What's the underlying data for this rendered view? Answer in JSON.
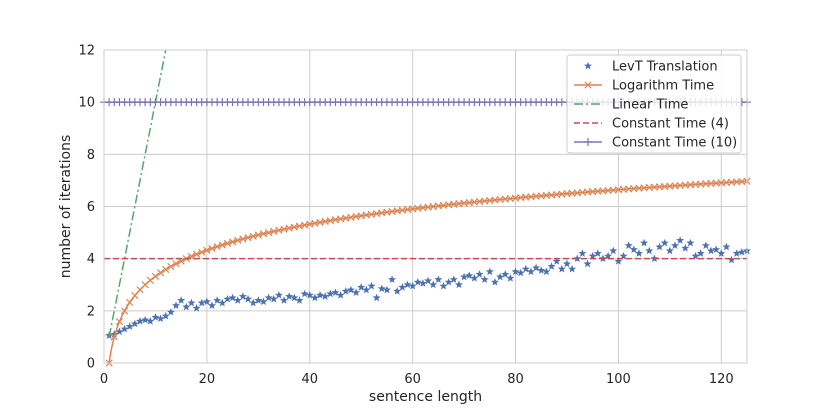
{
  "chart_data": {
    "type": "line",
    "title": "",
    "xlabel": "sentence length",
    "ylabel": "number of iterations",
    "xlim": [
      0,
      125
    ],
    "ylim": [
      0,
      12
    ],
    "xticks": [
      0,
      20,
      40,
      60,
      80,
      100,
      120
    ],
    "yticks": [
      0,
      2,
      4,
      6,
      8,
      10,
      12
    ],
    "grid": true,
    "legend_position": "top-right",
    "series": [
      {
        "name": "LevT Translation",
        "color": "#4c72b0",
        "marker": "star",
        "linestyle": "none",
        "x": [
          1,
          2,
          3,
          4,
          5,
          6,
          7,
          8,
          9,
          10,
          11,
          12,
          13,
          14,
          15,
          16,
          17,
          18,
          19,
          20,
          21,
          22,
          23,
          24,
          25,
          26,
          27,
          28,
          29,
          30,
          31,
          32,
          33,
          34,
          35,
          36,
          37,
          38,
          39,
          40,
          41,
          42,
          43,
          44,
          45,
          46,
          47,
          48,
          49,
          50,
          51,
          52,
          53,
          54,
          55,
          56,
          57,
          58,
          59,
          60,
          61,
          62,
          63,
          64,
          65,
          66,
          67,
          68,
          69,
          70,
          71,
          72,
          73,
          74,
          75,
          76,
          77,
          78,
          79,
          80,
          81,
          82,
          83,
          84,
          85,
          86,
          87,
          88,
          89,
          90,
          91,
          92,
          93,
          94,
          95,
          96,
          97,
          98,
          99,
          100,
          101,
          102,
          103,
          104,
          105,
          106,
          107,
          108,
          109,
          110,
          111,
          112,
          113,
          114,
          115,
          116,
          117,
          118,
          119,
          120,
          121,
          122,
          123,
          124,
          125
        ],
        "y": [
          1.05,
          1.1,
          1.2,
          1.3,
          1.4,
          1.5,
          1.6,
          1.65,
          1.6,
          1.75,
          1.7,
          1.8,
          1.95,
          2.2,
          2.4,
          2.15,
          2.3,
          2.1,
          2.3,
          2.35,
          2.2,
          2.4,
          2.3,
          2.45,
          2.5,
          2.4,
          2.55,
          2.45,
          2.3,
          2.4,
          2.35,
          2.5,
          2.45,
          2.6,
          2.4,
          2.55,
          2.5,
          2.4,
          2.65,
          2.6,
          2.5,
          2.6,
          2.55,
          2.65,
          2.7,
          2.6,
          2.75,
          2.8,
          2.7,
          2.9,
          2.8,
          2.95,
          2.5,
          2.85,
          2.8,
          3.2,
          2.75,
          2.9,
          3.0,
          2.95,
          3.1,
          3.05,
          3.15,
          3.0,
          3.2,
          2.95,
          3.1,
          3.2,
          3.0,
          3.3,
          3.35,
          3.25,
          3.4,
          3.2,
          3.5,
          3.1,
          3.3,
          3.4,
          3.25,
          3.5,
          3.45,
          3.6,
          3.5,
          3.65,
          3.55,
          3.5,
          3.7,
          3.9,
          3.6,
          3.8,
          3.6,
          4.0,
          4.2,
          3.8,
          4.1,
          4.2,
          4.0,
          4.1,
          4.3,
          3.9,
          4.1,
          4.5,
          4.35,
          4.2,
          4.6,
          4.3,
          4.0,
          4.45,
          4.6,
          4.3,
          4.5,
          4.7,
          4.4,
          4.6,
          4.1,
          4.2,
          4.5,
          4.3,
          4.35,
          4.2,
          4.45,
          3.95,
          4.2,
          4.25,
          4.3
        ]
      },
      {
        "name": "Logarithm Time",
        "color": "#dd8452",
        "marker": "x",
        "linestyle": "solid",
        "function": "log2(x)",
        "x_range": [
          1,
          125
        ]
      },
      {
        "name": "Linear Time",
        "color": "#55a868",
        "marker": "none",
        "linestyle": "dashdot",
        "function": "x",
        "x_range": [
          1,
          12
        ]
      },
      {
        "name": "Constant Time (4)",
        "color": "#c44e52",
        "marker": "none",
        "linestyle": "dashed",
        "function": "4",
        "x_range": [
          0,
          125
        ]
      },
      {
        "name": "Constant Time (10)",
        "color": "#8172b3",
        "marker": "plus",
        "linestyle": "solid",
        "function": "10",
        "x_range": [
          0,
          125
        ]
      }
    ]
  }
}
